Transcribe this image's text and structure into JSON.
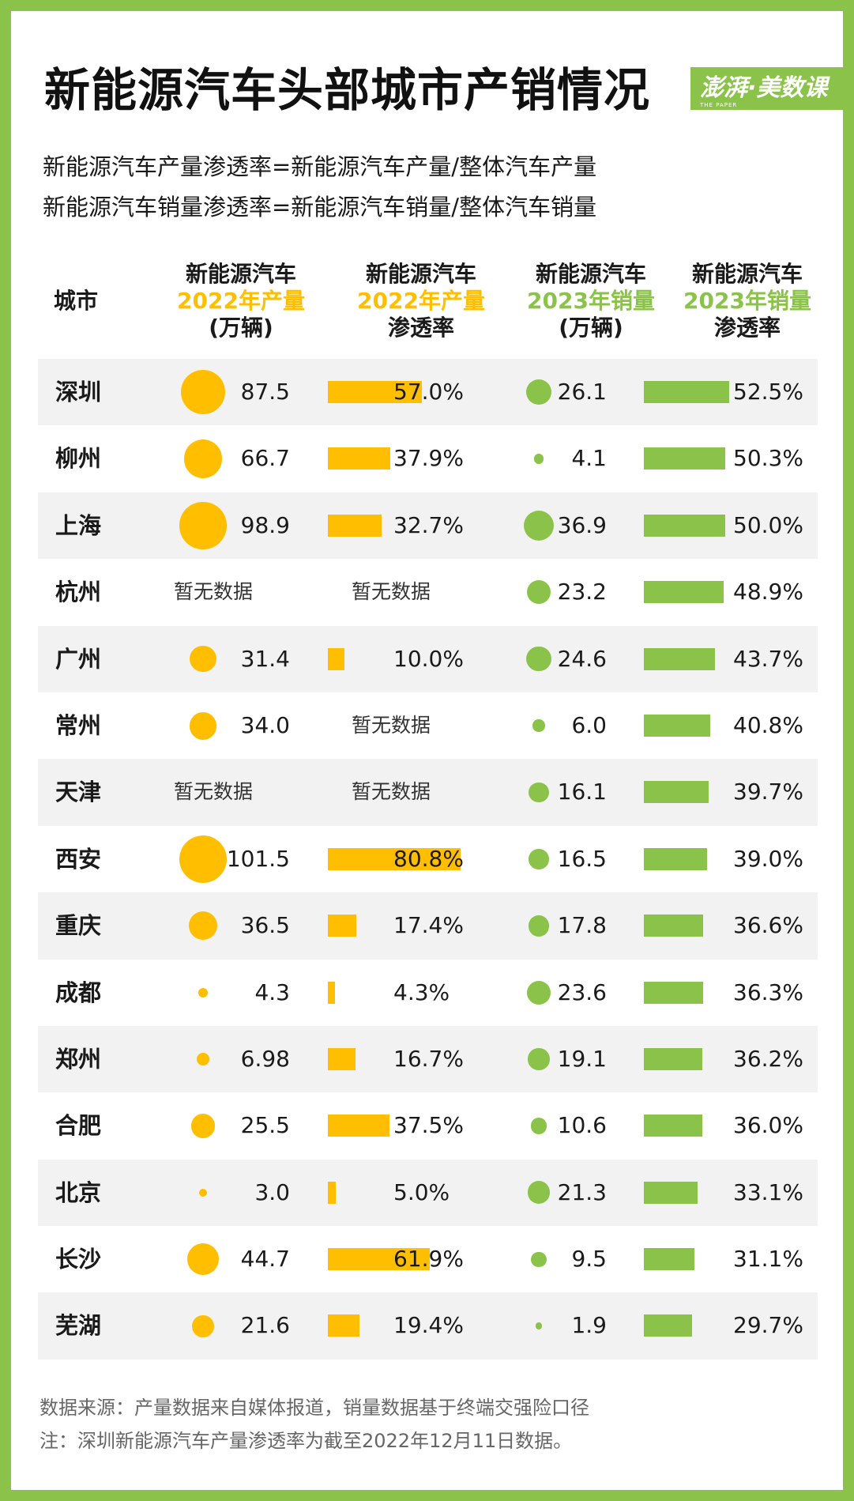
{
  "title": "新能源汽车头部城市产销情况",
  "logo": {
    "name": "澎湃·美数课",
    "sub": "THE PAPER"
  },
  "formulas": [
    "新能源汽车产量渗透率=新能源汽车产量/整体汽车产量",
    "新能源汽车销量渗透率=新能源汽车销量/整体汽车销量"
  ],
  "headers": {
    "city": "城市",
    "prod": {
      "l1": "新能源汽车",
      "l2": "2022年产量",
      "l3": "(万辆)"
    },
    "prate": {
      "l1": "新能源汽车",
      "l2": "2022年产量",
      "l3": "渗透率"
    },
    "sale": {
      "l1": "新能源汽车",
      "l2": "2023年销量",
      "l3": "(万辆)"
    },
    "srate": {
      "l1": "新能源汽车",
      "l2": "2023年销量",
      "l3": "渗透率"
    }
  },
  "no_data_text": "暂无数据",
  "colors": {
    "production": "#FFBF00",
    "sales": "#8BC34A",
    "row_shade": "#f2f2f2"
  },
  "chart_data": {
    "type": "table",
    "columns": [
      "城市",
      "新能源汽车2022年产量(万辆)",
      "新能源汽车2022年产量渗透率",
      "新能源汽车2023年销量(万辆)",
      "新能源汽车2023年销量渗透率"
    ],
    "rows": [
      {
        "city": "深圳",
        "prod": "87.5",
        "prate": "57.0%",
        "sale": "26.1",
        "srate": "52.5%"
      },
      {
        "city": "柳州",
        "prod": "66.7",
        "prate": "37.9%",
        "sale": "4.1",
        "srate": "50.3%"
      },
      {
        "city": "上海",
        "prod": "98.9",
        "prate": "32.7%",
        "sale": "36.9",
        "srate": "50.0%"
      },
      {
        "city": "杭州",
        "prod": null,
        "prate": null,
        "sale": "23.2",
        "srate": "48.9%"
      },
      {
        "city": "广州",
        "prod": "31.4",
        "prate": "10.0%",
        "sale": "24.6",
        "srate": "43.7%"
      },
      {
        "city": "常州",
        "prod": "34.0",
        "prate": null,
        "sale": "6.0",
        "srate": "40.8%"
      },
      {
        "city": "天津",
        "prod": null,
        "prate": null,
        "sale": "16.1",
        "srate": "39.7%"
      },
      {
        "city": "西安",
        "prod": "101.5",
        "prate": "80.8%",
        "sale": "16.5",
        "srate": "39.0%"
      },
      {
        "city": "重庆",
        "prod": "36.5",
        "prate": "17.4%",
        "sale": "17.8",
        "srate": "36.6%"
      },
      {
        "city": "成都",
        "prod": "4.3",
        "prate": "4.3%",
        "sale": "23.6",
        "srate": "36.3%"
      },
      {
        "city": "郑州",
        "prod": "6.98",
        "prate": "16.7%",
        "sale": "19.1",
        "srate": "36.2%"
      },
      {
        "city": "合肥",
        "prod": "25.5",
        "prate": "37.5%",
        "sale": "10.6",
        "srate": "36.0%"
      },
      {
        "city": "北京",
        "prod": "3.0",
        "prate": "5.0%",
        "sale": "21.3",
        "srate": "33.1%"
      },
      {
        "city": "长沙",
        "prod": "44.7",
        "prate": "61.9%",
        "sale": "9.5",
        "srate": "31.1%"
      },
      {
        "city": "芜湖",
        "prod": "21.6",
        "prate": "19.4%",
        "sale": "1.9",
        "srate": "29.7%"
      }
    ]
  },
  "notes": [
    "数据来源：产量数据来自媒体报道，销量数据基于终端交强险口径",
    "注：深圳新能源汽车产量渗透率为截至2022年12月11日数据。"
  ]
}
